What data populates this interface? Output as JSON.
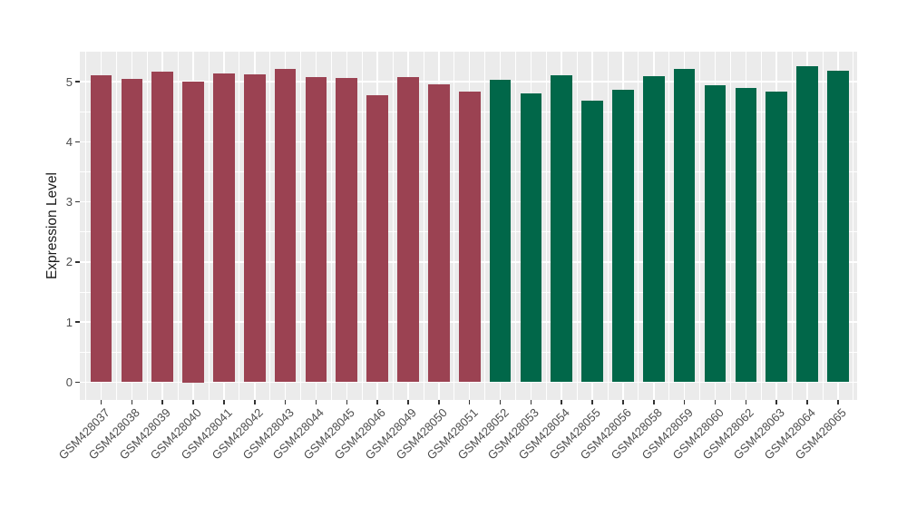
{
  "chart_data": {
    "type": "bar",
    "title": "",
    "xlabel": "",
    "ylabel": "Expression Level",
    "ylim": [
      -0.29,
      5.51
    ],
    "yticks": [
      "0",
      "1",
      "2",
      "3",
      "4",
      "5"
    ],
    "ytick_values": [
      0,
      1,
      2,
      3,
      4,
      5
    ],
    "grid": {
      "horizontal_major": [
        0,
        1,
        2,
        3,
        4,
        5
      ],
      "horizontal_minor": [
        0.5,
        1.5,
        2.5,
        3.5,
        4.5,
        5.5
      ],
      "vertical": "major at each category center, minor at category boundaries"
    },
    "legend_position": "none",
    "categories": [
      "GSM428037",
      "GSM428038",
      "GSM428039",
      "GSM428040",
      "GSM428041",
      "GSM428042",
      "GSM428043",
      "GSM428044",
      "GSM428045",
      "GSM428046",
      "GSM428049",
      "GSM428050",
      "GSM428051",
      "GSM428052",
      "GSM428053",
      "GSM428054",
      "GSM428055",
      "GSM428056",
      "GSM428058",
      "GSM428059",
      "GSM428060",
      "GSM428062",
      "GSM428063",
      "GSM428064",
      "GSM428065"
    ],
    "values": [
      5.1,
      5.05,
      5.16,
      5.0,
      5.14,
      5.12,
      5.21,
      5.08,
      5.06,
      4.77,
      5.08,
      4.95,
      4.84,
      5.03,
      4.81,
      5.1,
      4.68,
      4.86,
      5.09,
      5.21,
      4.94,
      4.89,
      4.84,
      5.25,
      5.18
    ],
    "groups": [
      "A",
      "A",
      "A",
      "A",
      "A",
      "A",
      "A",
      "A",
      "A",
      "A",
      "A",
      "A",
      "A",
      "B",
      "B",
      "B",
      "B",
      "B",
      "B",
      "B",
      "B",
      "B",
      "B",
      "B",
      "B"
    ],
    "group_colors": {
      "A": "#9B4252",
      "B": "#016749"
    },
    "style": {
      "panel_background": "#EBEBEB",
      "gridline_color": "#FFFFFF",
      "tick_label_color": "#4D4D4D",
      "axis_title_color": "#1A1A1A",
      "tick_mark_color": "#333333",
      "figure_background": "#FFFFFF"
    }
  }
}
